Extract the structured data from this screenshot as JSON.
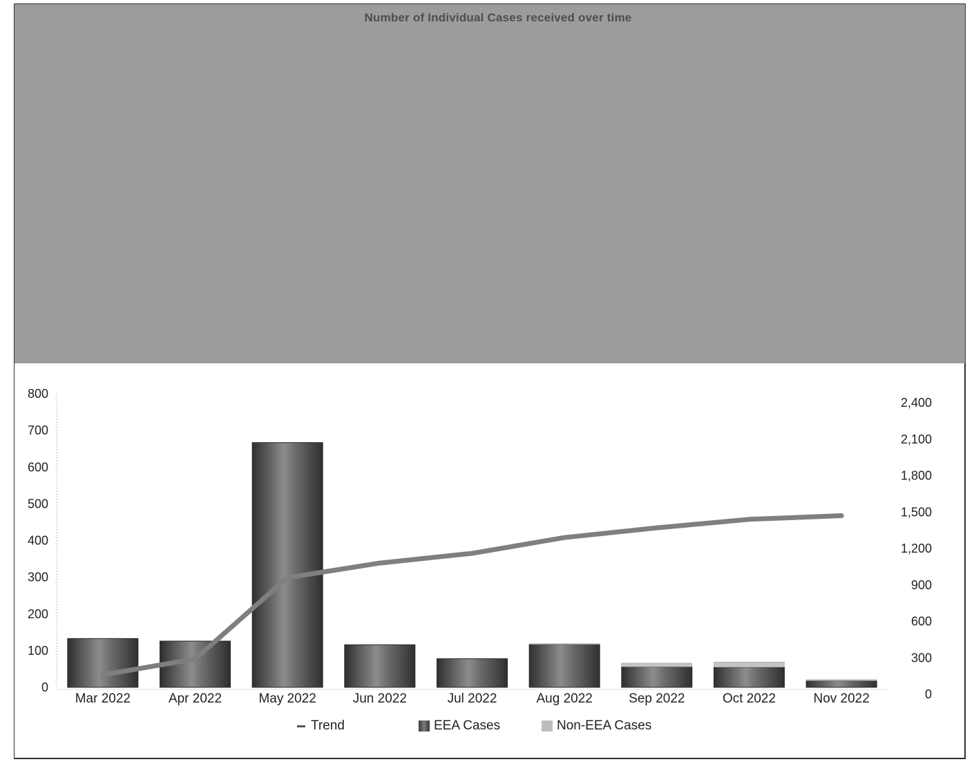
{
  "chart_data": {
    "type": "bar",
    "title": "Number of Individual Cases received over time",
    "categories": [
      "Mar 2022",
      "Apr 2022",
      "May 2022",
      "Jun 2022",
      "Jul 2022",
      "Aug 2022",
      "Sep 2022",
      "Oct 2022",
      "Nov 2022"
    ],
    "series": [
      {
        "name": "EEA Cases",
        "type": "bar",
        "axis": "left",
        "values": [
          133,
          126,
          667,
          116,
          78,
          117,
          56,
          55,
          18
        ]
      },
      {
        "name": "Non-EEA Cases",
        "type": "bar",
        "stacked": true,
        "axis": "left",
        "values": [
          0,
          0,
          0,
          0,
          0,
          2,
          10,
          14,
          3
        ]
      },
      {
        "name": "Trend",
        "type": "line",
        "axis": "right",
        "values": [
          160,
          290,
          960,
          1080,
          1160,
          1290,
          1370,
          1440,
          1470
        ]
      }
    ],
    "y_left": {
      "ylim": [
        0,
        800
      ],
      "ticks": [
        "0",
        "100",
        "200",
        "300",
        "400",
        "500",
        "600",
        "700",
        "800"
      ]
    },
    "y_right": {
      "ylim": [
        0,
        2400
      ],
      "ticks": [
        "0",
        "300",
        "600",
        "900",
        "1,200",
        "1,500",
        "1,800",
        "2,100",
        "2,400"
      ]
    },
    "legend_position": "bottom",
    "grid": false
  },
  "legend": {
    "trend": "Trend",
    "eea": "EEA Cases",
    "non_eea": "Non-EEA Cases"
  },
  "colors": {
    "header_band": "#9c9c9c",
    "eea_dark": "#3a3a3a",
    "eea_light": "#8a8a8a",
    "non_eea": "#c4c4c4",
    "trend": "#7f7f7f"
  }
}
